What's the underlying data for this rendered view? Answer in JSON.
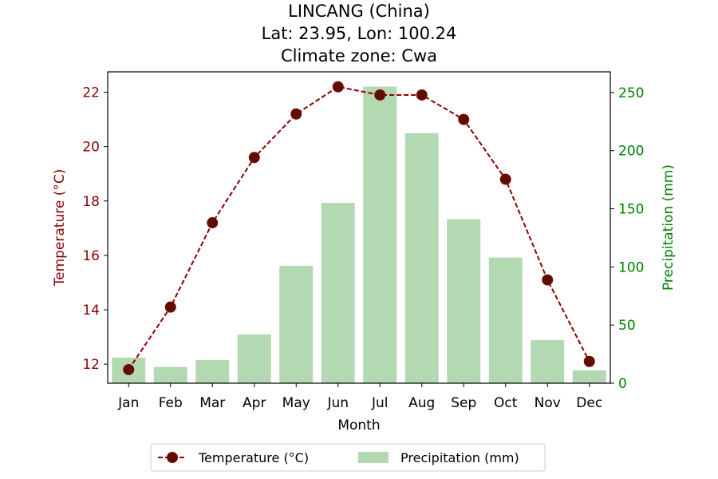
{
  "chart_data": {
    "type": "bar+line",
    "title": [
      "LINCANG (China)",
      "Lat: 23.95, Lon: 100.24",
      "Climate zone: Cwa"
    ],
    "xlabel": "Month",
    "categories": [
      "Jan",
      "Feb",
      "Mar",
      "Apr",
      "May",
      "Jun",
      "Jul",
      "Aug",
      "Sep",
      "Oct",
      "Nov",
      "Dec"
    ],
    "series": [
      {
        "name": "Temperature (°C)",
        "type": "line",
        "axis": "left",
        "color": "#8b0000",
        "values": [
          11.8,
          14.1,
          17.2,
          19.6,
          21.2,
          22.2,
          21.9,
          21.9,
          21.0,
          18.8,
          15.1,
          12.1
        ]
      },
      {
        "name": "Precipitation (mm)",
        "type": "bar",
        "axis": "right",
        "color": "#b2d9b2",
        "values": [
          22,
          14,
          20,
          42,
          101,
          155,
          255,
          215,
          141,
          108,
          37,
          11
        ]
      }
    ],
    "y_left": {
      "label": "Temperature (°C)",
      "range": [
        11.3,
        22.75
      ],
      "ticks": [
        12,
        14,
        16,
        18,
        20,
        22
      ],
      "color": "#8b0000"
    },
    "y_right": {
      "label": "Precipitation (mm)",
      "range": [
        0,
        267.75
      ],
      "ticks": [
        0,
        50,
        100,
        150,
        200,
        250
      ],
      "color": "#008000"
    },
    "legend": {
      "position": "bottom-center",
      "items": [
        "Temperature (°C)",
        "Precipitation (mm)"
      ]
    },
    "grid": false
  }
}
